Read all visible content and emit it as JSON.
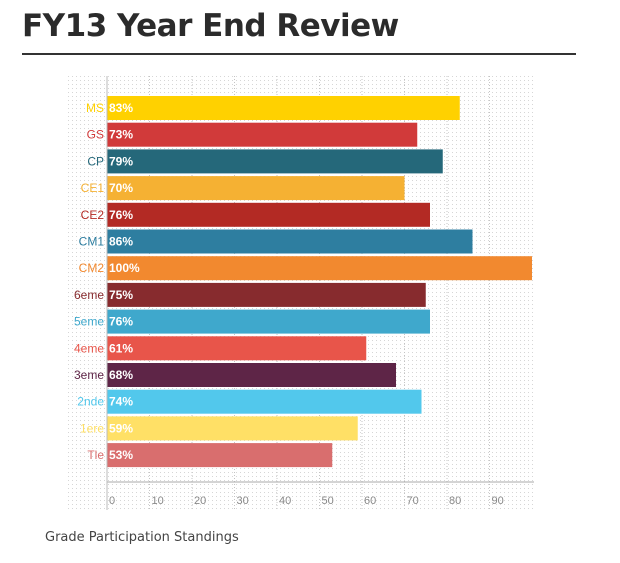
{
  "header": {
    "title": "FY13 Year End Review"
  },
  "caption": "Grade Participation Standings",
  "chart_data": {
    "type": "bar",
    "orientation": "horizontal",
    "title": "",
    "xlabel": "",
    "ylabel": "",
    "xlim": [
      0,
      100
    ],
    "xticks": [
      0,
      10,
      20,
      30,
      40,
      50,
      60,
      70,
      80,
      90
    ],
    "grid": true,
    "categories": [
      "MS",
      "GS",
      "CP",
      "CE1",
      "CE2",
      "CM1",
      "CM2",
      "6eme",
      "5eme",
      "4eme",
      "3eme",
      "2nde",
      "1ere",
      "Tle"
    ],
    "values": [
      83,
      73,
      79,
      70,
      76,
      86,
      100,
      75,
      76,
      61,
      68,
      74,
      59,
      53
    ],
    "value_labels": [
      "83%",
      "73%",
      "79%",
      "70%",
      "76%",
      "86%",
      "100%",
      "75%",
      "76%",
      "61%",
      "68%",
      "74%",
      "59%",
      "53%"
    ],
    "colors": [
      "#FFD100",
      "#D13A3A",
      "#25687A",
      "#F5B133",
      "#B32A24",
      "#2E7EA0",
      "#F2892F",
      "#872B2E",
      "#3FA8CC",
      "#E8554A",
      "#5E2547",
      "#52C8EC",
      "#FFE066",
      "#D96E6E"
    ]
  }
}
